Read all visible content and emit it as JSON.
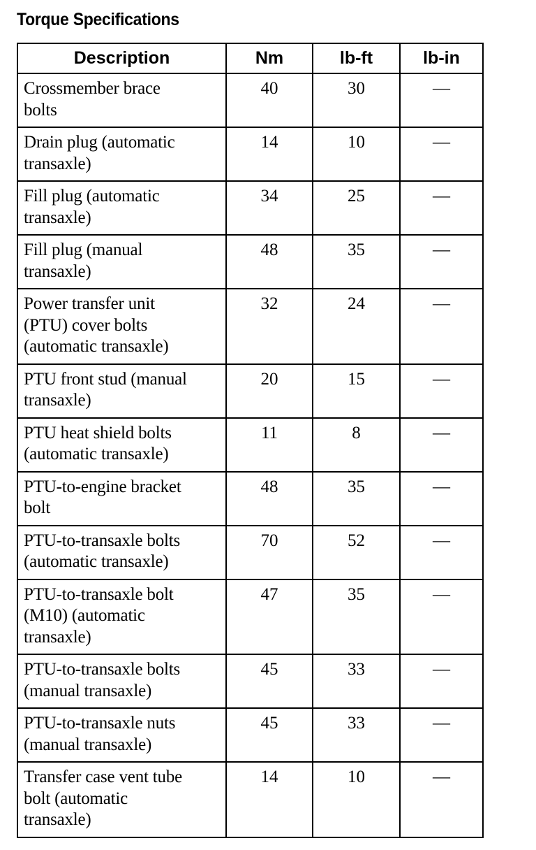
{
  "title": "Torque Specifications",
  "table": {
    "headers": [
      "Description",
      "Nm",
      "lb-ft",
      "lb-in"
    ],
    "rows": [
      {
        "description": "Crossmember brace\nbolts",
        "nm": "40",
        "lbft": "30",
        "lbin": "—"
      },
      {
        "description": "Drain plug (automatic\ntransaxle)",
        "nm": "14",
        "lbft": "10",
        "lbin": "—"
      },
      {
        "description": "Fill plug (automatic\ntransaxle)",
        "nm": "34",
        "lbft": "25",
        "lbin": "—"
      },
      {
        "description": "Fill plug (manual\ntransaxle)",
        "nm": "48",
        "lbft": "35",
        "lbin": "—"
      },
      {
        "description": "Power transfer unit\n(PTU) cover bolts\n(automatic transaxle)",
        "nm": "32",
        "lbft": "24",
        "lbin": "—"
      },
      {
        "description": "PTU front stud (manual\ntransaxle)",
        "nm": "20",
        "lbft": "15",
        "lbin": "—"
      },
      {
        "description": "PTU heat shield bolts\n(automatic transaxle)",
        "nm": "11",
        "lbft": "8",
        "lbin": "—"
      },
      {
        "description": "PTU-to-engine bracket\nbolt",
        "nm": "48",
        "lbft": "35",
        "lbin": "—"
      },
      {
        "description": "PTU-to-transaxle bolts\n(automatic transaxle)",
        "nm": "70",
        "lbft": "52",
        "lbin": "—"
      },
      {
        "description": "PTU-to-transaxle bolt\n(M10) (automatic\ntransaxle)",
        "nm": "47",
        "lbft": "35",
        "lbin": "—"
      },
      {
        "description": "PTU-to-transaxle bolts\n(manual transaxle)",
        "nm": "45",
        "lbft": "33",
        "lbin": "—"
      },
      {
        "description": "PTU-to-transaxle nuts\n(manual transaxle)",
        "nm": "45",
        "lbft": "33",
        "lbin": "—"
      },
      {
        "description": "Transfer case vent tube\nbolt (automatic\ntransaxle)",
        "nm": "14",
        "lbft": "10",
        "lbin": "—"
      }
    ]
  }
}
